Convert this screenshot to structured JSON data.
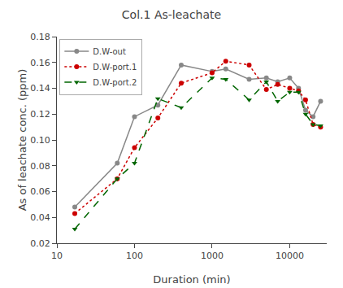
{
  "chart_data": {
    "type": "line",
    "title": "Col.1 As-leachate",
    "xlabel": "Duration (min)",
    "ylabel": "As of leachate conc. (ppm)",
    "log": "x",
    "x": [
      17,
      60,
      100,
      200,
      400,
      1000,
      1500,
      3000,
      5000,
      7000,
      10000,
      13000,
      16000,
      20000,
      25000
    ],
    "series": [
      {
        "name": "D.W-out",
        "color": "#888888",
        "marker": "circle",
        "line_style": "solid",
        "values": [
          0.048,
          0.082,
          0.118,
          0.127,
          0.158,
          0.153,
          0.155,
          0.147,
          0.148,
          0.145,
          0.148,
          0.14,
          0.123,
          0.118,
          0.13
        ]
      },
      {
        "name": "D.W-port.1",
        "color": "#cc0000",
        "marker": "circle",
        "line_style": "dotted",
        "values": [
          0.043,
          0.07,
          0.094,
          0.117,
          0.144,
          0.152,
          0.161,
          0.158,
          0.139,
          0.143,
          0.14,
          0.138,
          0.131,
          0.112,
          0.11
        ]
      },
      {
        "name": "D.W-port.2",
        "color": "#006600",
        "marker": "triangle-down",
        "line_style": "dashed",
        "values": [
          0.031,
          0.07,
          0.082,
          0.132,
          0.125,
          0.148,
          0.147,
          0.131,
          0.145,
          0.13,
          0.137,
          0.137,
          0.12,
          0.112,
          0.111
        ]
      }
    ],
    "xlim": [
      10,
      30000
    ],
    "xticks": [
      10,
      100,
      1000,
      10000
    ],
    "ylim": [
      0.02,
      0.18
    ],
    "yticks": [
      0.02,
      0.04,
      0.06,
      0.08,
      {
        "value": 0.1,
        "label": "0.10"
      },
      0.12,
      0.14,
      0.16,
      0.18
    ],
    "grid": false,
    "legend": "upper left"
  }
}
